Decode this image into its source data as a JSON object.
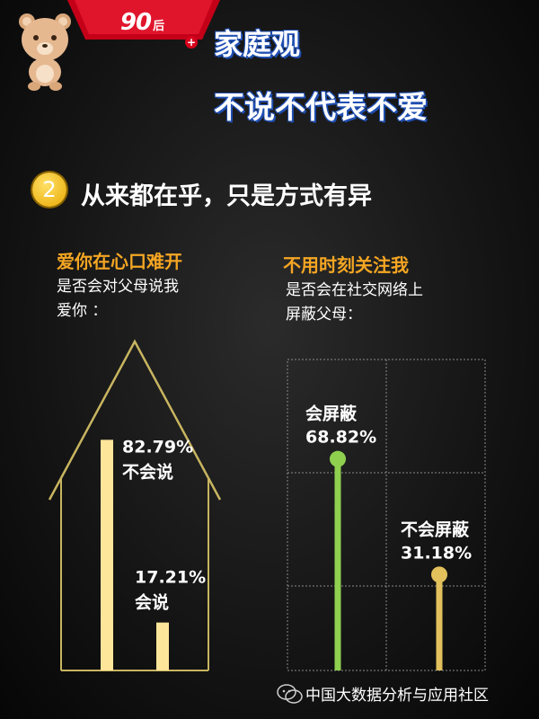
{
  "badge": {
    "number": "90",
    "suffix": "后"
  },
  "headline": {
    "line1": "家庭观",
    "line2": "不说不代表不爱"
  },
  "section": {
    "number": "2",
    "title": "从来都在乎，只是方式有异"
  },
  "left_panel": {
    "heading": "爱你在心口难开",
    "question_line1": "是否会对父母说我",
    "question_line2": "爱你 ："
  },
  "right_panel": {
    "heading": "不用时刻关注我",
    "question_line1": "是否会在社交网络上",
    "question_line2": "屏蔽父母："
  },
  "footer": {
    "text": "中国大数据分析与应用社区"
  },
  "colors": {
    "accent_orange": "#f5a623",
    "badge_red": "#d6001c",
    "bar_yellow": "#fde59a",
    "line_green": "#8fd14f",
    "line_gold": "#e2c15c",
    "house_outline": "#c8b560"
  },
  "chart_data": [
    {
      "type": "bar",
      "categories": [
        "不会说",
        "会说"
      ],
      "values": [
        82.79,
        17.21
      ],
      "value_labels": [
        "82.79%",
        "17.21%"
      ],
      "unit": "%",
      "ylim": [
        0,
        100
      ]
    },
    {
      "type": "bar",
      "categories": [
        "会屏蔽",
        "不会屏蔽"
      ],
      "values": [
        68.82,
        31.18
      ],
      "value_labels": [
        "68.82%",
        "31.18%"
      ],
      "unit": "%",
      "ylim": [
        0,
        100
      ],
      "grid": true
    }
  ]
}
